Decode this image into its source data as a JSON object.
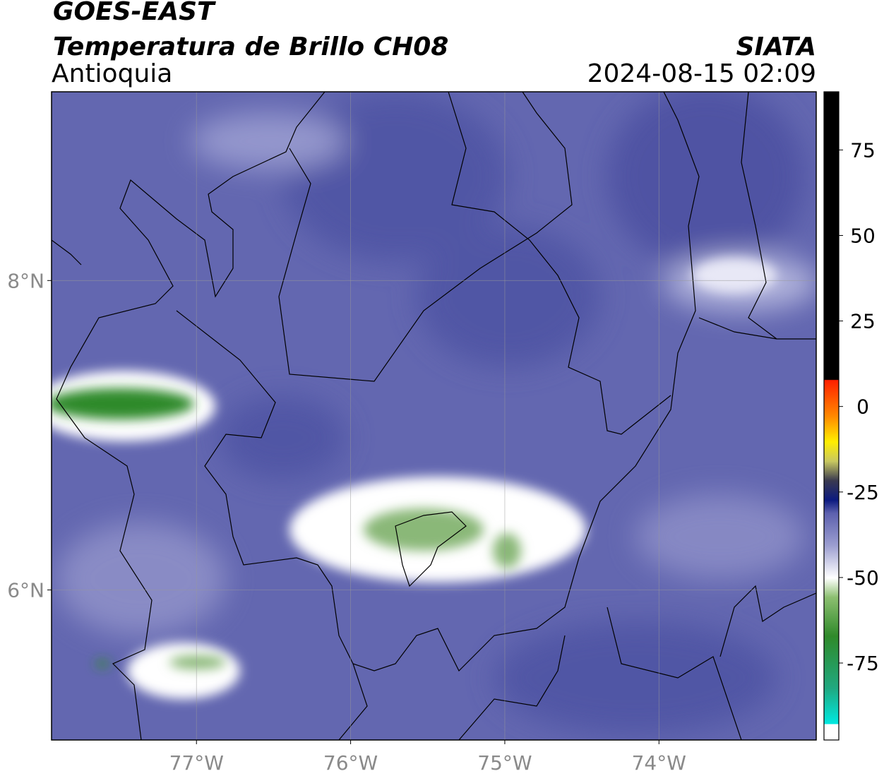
{
  "header": {
    "title": "GOES-EAST",
    "subtitle": "Temperatura de Brillo CH08",
    "region": "Antioquia",
    "source": "SIATA",
    "datetime": "2024-08-15 02:09"
  },
  "map": {
    "xlim": [
      -77.94,
      -72.98
    ],
    "ylim": [
      5.03,
      9.22
    ],
    "xticks": [
      {
        "value": -77,
        "label": "77°W"
      },
      {
        "value": -76,
        "label": "76°W"
      },
      {
        "value": -75,
        "label": "75°W"
      },
      {
        "value": -74,
        "label": "74°W"
      }
    ],
    "yticks": [
      {
        "value": 6,
        "label": "6°N"
      },
      {
        "value": 8,
        "label": "8°N"
      }
    ],
    "grid": true
  },
  "colorbar": {
    "lim": [
      -97.5,
      92
    ],
    "ticks": [
      -75,
      -50,
      -25,
      0,
      25,
      50,
      75
    ]
  }
}
